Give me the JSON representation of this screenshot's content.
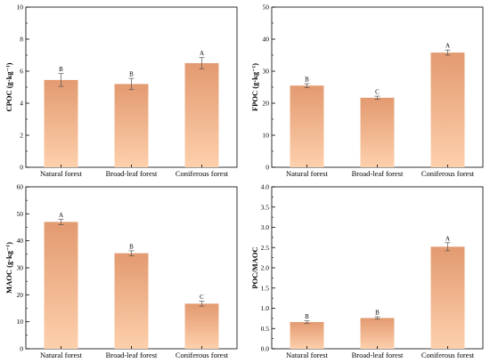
{
  "colors": {
    "bar_top": "#e39a70",
    "bar_bottom": "#fdd0ac",
    "axis": "#000000",
    "error_bar": "#555555"
  },
  "chart_data": [
    {
      "type": "bar",
      "ylabel": "CPOC (g·kg⁻¹)",
      "categories": [
        "Natural forest",
        "Broad-leaf forest",
        "Coniferous forest"
      ],
      "values": [
        5.45,
        5.2,
        6.5
      ],
      "errors": [
        0.4,
        0.35,
        0.35
      ],
      "letters": [
        "B",
        "B",
        "A"
      ],
      "ylim": [
        0,
        10
      ],
      "yticks": [
        "0",
        "2",
        "4",
        "6",
        "8",
        "10"
      ],
      "yticks_values": [
        0,
        2,
        4,
        6,
        8,
        10
      ],
      "ytick_minor": [
        1,
        3,
        5,
        7,
        9
      ]
    },
    {
      "type": "bar",
      "ylabel": "FPOC (g·kg⁻¹)",
      "categories": [
        "Natural forest",
        "Broad-leaf forest",
        "Coniferous forest"
      ],
      "values": [
        25.5,
        21.7,
        35.8
      ],
      "errors": [
        0.6,
        0.5,
        0.8
      ],
      "letters": [
        "B",
        "C",
        "A"
      ],
      "ylim": [
        0,
        50
      ],
      "yticks": [
        "0",
        "10",
        "20",
        "30",
        "40",
        "50"
      ],
      "yticks_values": [
        0,
        10,
        20,
        30,
        40,
        50
      ],
      "ytick_minor": [
        5,
        15,
        25,
        35,
        45
      ]
    },
    {
      "type": "bar",
      "ylabel": "MAOC (g·kg⁻¹)",
      "categories": [
        "Natural forest",
        "Broad-leaf forest",
        "Coniferous forest"
      ],
      "values": [
        47.0,
        35.4,
        16.7
      ],
      "errors": [
        1.0,
        0.9,
        0.9
      ],
      "letters": [
        "A",
        "B",
        "C"
      ],
      "ylim": [
        0,
        60
      ],
      "yticks": [
        "0",
        "10",
        "20",
        "30",
        "40",
        "50",
        "60"
      ],
      "yticks_values": [
        0,
        10,
        20,
        30,
        40,
        50,
        60
      ],
      "ytick_minor": [
        5,
        15,
        25,
        35,
        45,
        55
      ]
    },
    {
      "type": "bar",
      "ylabel": "POC/MAOC",
      "categories": [
        "Natural forest",
        "Broad-leaf forest",
        "Coniferous forest"
      ],
      "values": [
        0.66,
        0.76,
        2.52
      ],
      "errors": [
        0.03,
        0.03,
        0.1
      ],
      "letters": [
        "B",
        "B",
        "A"
      ],
      "ylim": [
        0,
        4.0
      ],
      "yticks": [
        "0.0",
        "0.5",
        "1.0",
        "1.5",
        "2.0",
        "2.5",
        "3.0",
        "3.5",
        "4.0"
      ],
      "yticks_values": [
        0,
        0.5,
        1.0,
        1.5,
        2.0,
        2.5,
        3.0,
        3.5,
        4.0
      ],
      "ytick_minor": [
        0.25,
        0.75,
        1.25,
        1.75,
        2.25,
        2.75,
        3.25,
        3.75
      ]
    }
  ]
}
